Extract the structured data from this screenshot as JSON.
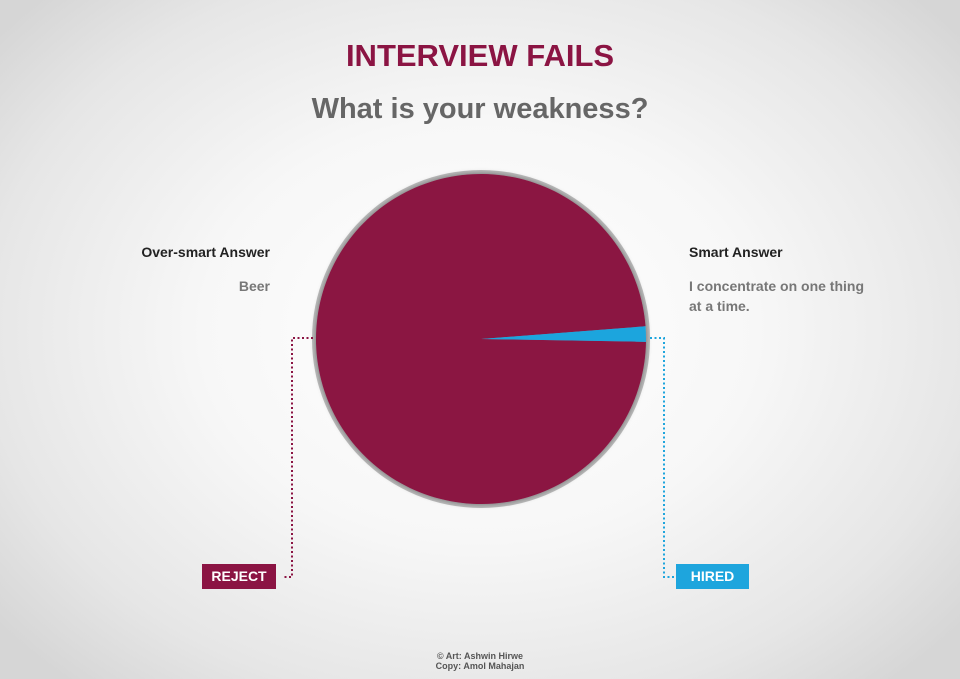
{
  "header": {
    "title": "INTERVIEW FAILS",
    "subtitle": "What is your weakness?"
  },
  "chart_data": {
    "type": "pie",
    "title": "INTERVIEW FAILS",
    "subtitle": "What is your weakness?",
    "slices": [
      {
        "label": "Over-smart Answer",
        "description": "Beer",
        "outcome": "REJECT",
        "value": 98.5,
        "color": "#8b1443"
      },
      {
        "label": "Smart Answer",
        "description_lines": [
          "I concentrate on one thing",
          "at a time."
        ],
        "outcome": "HIRED",
        "value": 1.5,
        "color": "#1ea5dd"
      }
    ],
    "legend": "none"
  },
  "credits": {
    "art": "© Art: Ashwin Hirwe",
    "copy": "Copy: Amol Mahajan"
  },
  "colors": {
    "title": "#8b1443",
    "subtitle": "#666666",
    "reject": "#8b1443",
    "hired": "#1ea5dd"
  }
}
